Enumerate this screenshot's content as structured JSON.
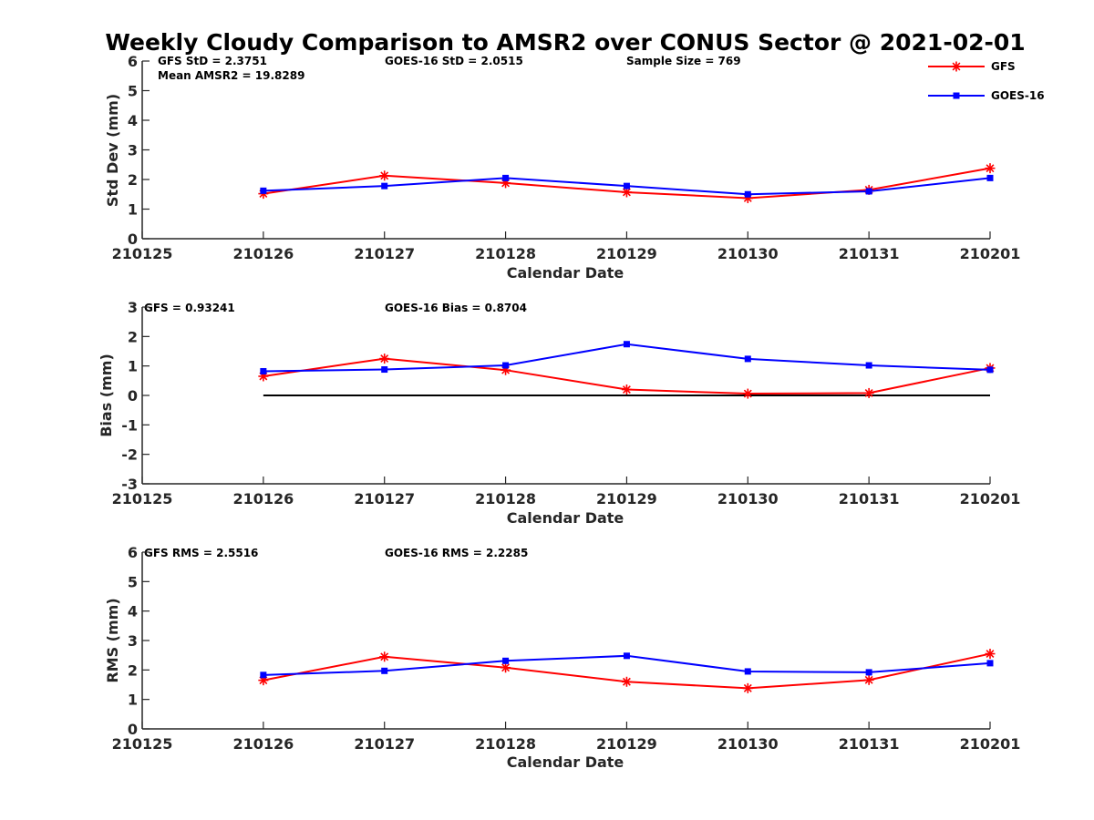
{
  "title": "Weekly Cloudy Comparison to AMSR2 over CONUS Sector @ 2021-02-01",
  "legend": [
    {
      "name": "GFS",
      "color": "#ff0000",
      "marker": "asterisk"
    },
    {
      "name": "GOES-16",
      "color": "#0000ff",
      "marker": "square"
    }
  ],
  "panels": [
    {
      "stats": [
        "GFS StD = 2.3751",
        "Mean AMSR2 = 19.8289",
        "GOES-16 StD = 2.0515",
        "Sample Size = 769"
      ]
    },
    {
      "stats": [
        "GFS = 0.93241",
        "GOES-16 Bias  = 0.8704"
      ]
    },
    {
      "stats": [
        "GFS RMS = 2.5516",
        "GOES-16 RMS = 2.2285"
      ]
    }
  ],
  "chart_data": [
    {
      "type": "line",
      "title": "Weekly Cloudy Comparison to AMSR2 over CONUS Sector @ 2021-02-01",
      "xlabel": "Calendar Date",
      "ylabel": "Std Dev (mm)",
      "categories": [
        "210125",
        "210126",
        "210127",
        "210128",
        "210129",
        "210130",
        "210131",
        "210201"
      ],
      "ylim": [
        0,
        6
      ],
      "yticks": [
        "0",
        "1",
        "2",
        "3",
        "4",
        "5",
        "6"
      ],
      "series": [
        {
          "name": "GFS",
          "color": "#ff0000",
          "values": [
            null,
            1.52,
            2.13,
            1.88,
            1.57,
            1.37,
            1.65,
            2.38
          ]
        },
        {
          "name": "GOES-16",
          "color": "#0000ff",
          "values": [
            null,
            1.62,
            1.78,
            2.05,
            1.78,
            1.5,
            1.6,
            2.05
          ]
        }
      ]
    },
    {
      "type": "line",
      "xlabel": "Calendar Date",
      "ylabel": "Bias (mm)",
      "categories": [
        "210125",
        "210126",
        "210127",
        "210128",
        "210129",
        "210130",
        "210131",
        "210201"
      ],
      "ylim": [
        -3,
        3
      ],
      "yticks": [
        "-3",
        "-2",
        "-1",
        "0",
        "1",
        "2",
        "3"
      ],
      "zero_line": true,
      "series": [
        {
          "name": "GFS",
          "color": "#ff0000",
          "values": [
            null,
            0.65,
            1.25,
            0.86,
            0.2,
            0.06,
            0.08,
            0.93
          ]
        },
        {
          "name": "GOES-16",
          "color": "#0000ff",
          "values": [
            null,
            0.82,
            0.88,
            1.02,
            1.74,
            1.24,
            1.02,
            0.87
          ]
        }
      ]
    },
    {
      "type": "line",
      "xlabel": "Calendar Date",
      "ylabel": "RMS (mm)",
      "categories": [
        "210125",
        "210126",
        "210127",
        "210128",
        "210129",
        "210130",
        "210131",
        "210201"
      ],
      "ylim": [
        0,
        6
      ],
      "yticks": [
        "0",
        "1",
        "2",
        "3",
        "4",
        "5",
        "6"
      ],
      "series": [
        {
          "name": "GFS",
          "color": "#ff0000",
          "values": [
            null,
            1.65,
            2.45,
            2.08,
            1.6,
            1.38,
            1.66,
            2.55
          ]
        },
        {
          "name": "GOES-16",
          "color": "#0000ff",
          "values": [
            null,
            1.83,
            1.97,
            2.31,
            2.48,
            1.95,
            1.92,
            2.23
          ]
        }
      ]
    }
  ]
}
